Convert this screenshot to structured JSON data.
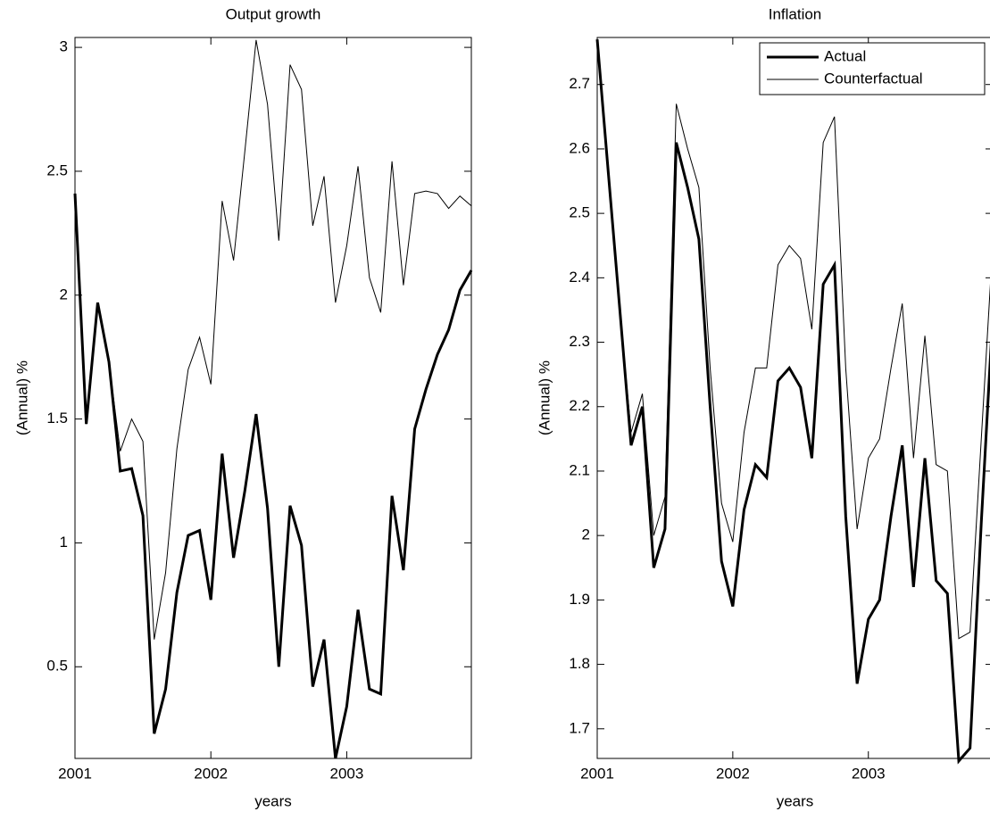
{
  "chart_data": [
    {
      "type": "line",
      "title": "Output growth",
      "xlabel": "years",
      "ylabel": "(Annual) %",
      "x": [
        2001,
        2001.083,
        2001.167,
        2001.25,
        2001.333,
        2001.417,
        2001.5,
        2001.583,
        2001.667,
        2001.75,
        2001.833,
        2001.917,
        2002,
        2002.083,
        2002.167,
        2002.25,
        2002.333,
        2002.417,
        2002.5,
        2002.583,
        2002.667,
        2002.75,
        2002.833,
        2002.917,
        2003,
        2003.083,
        2003.167,
        2003.25,
        2003.333,
        2003.417,
        2003.5,
        2003.583,
        2003.667,
        2003.75,
        2003.833,
        2003.917
      ],
      "series": [
        {
          "name": "Actual",
          "color": "#000000",
          "width": 3,
          "values": [
            2.41,
            1.48,
            1.97,
            1.73,
            1.29,
            1.3,
            1.11,
            0.23,
            0.41,
            0.8,
            1.03,
            1.05,
            0.77,
            1.36,
            0.94,
            1.21,
            1.52,
            1.14,
            0.5,
            1.15,
            0.99,
            0.42,
            0.61,
            0.13,
            0.34,
            0.73,
            0.41,
            0.39,
            1.19,
            0.89,
            1.46,
            1.62,
            1.76,
            1.86,
            2.02,
            2.1
          ]
        },
        {
          "name": "Counterfactual",
          "color": "#000000",
          "width": 1,
          "values": [
            2.41,
            1.48,
            1.97,
            1.73,
            1.37,
            1.5,
            1.41,
            0.61,
            0.88,
            1.38,
            1.7,
            1.83,
            1.64,
            2.38,
            2.14,
            2.58,
            3.03,
            2.77,
            2.22,
            2.93,
            2.83,
            2.28,
            2.48,
            1.97,
            2.2,
            2.52,
            2.07,
            1.93,
            2.54,
            2.04,
            2.41,
            2.42,
            2.41,
            2.35,
            2.4,
            2.36
          ]
        }
      ],
      "xlim": [
        2001,
        2003.917
      ],
      "xticks": [
        2001,
        2002,
        2003
      ],
      "ylim": [
        0.13,
        3.04
      ],
      "yticks": [
        0.5,
        1,
        1.5,
        2,
        2.5,
        3
      ]
    },
    {
      "type": "line",
      "title": "Inflation",
      "xlabel": "years",
      "ylabel": "(Annual) %",
      "legend": "upper right",
      "x": [
        2001,
        2001.083,
        2001.167,
        2001.25,
        2001.333,
        2001.417,
        2001.5,
        2001.583,
        2001.667,
        2001.75,
        2001.833,
        2001.917,
        2002,
        2002.083,
        2002.167,
        2002.25,
        2002.333,
        2002.417,
        2002.5,
        2002.583,
        2002.667,
        2002.75,
        2002.833,
        2002.917,
        2003,
        2003.083,
        2003.167,
        2003.25,
        2003.333,
        2003.417,
        2003.5,
        2003.583,
        2003.667,
        2003.75,
        2003.833,
        2003.917
      ],
      "series": [
        {
          "name": "Actual",
          "color": "#000000",
          "width": 3,
          "values": [
            2.77,
            2.56,
            2.35,
            2.14,
            2.2,
            1.95,
            2.01,
            2.61,
            2.54,
            2.46,
            2.2,
            1.96,
            1.89,
            2.04,
            2.11,
            2.09,
            2.24,
            2.26,
            2.23,
            2.12,
            2.39,
            2.42,
            2.03,
            1.77,
            1.87,
            1.9,
            2.03,
            2.14,
            1.92,
            2.12,
            1.93,
            1.91,
            1.65,
            1.67,
            2.02,
            2.34
          ]
        },
        {
          "name": "Counterfactual",
          "color": "#000000",
          "width": 1,
          "values": [
            2.77,
            2.56,
            2.35,
            2.16,
            2.22,
            2.0,
            2.06,
            2.67,
            2.6,
            2.54,
            2.26,
            2.05,
            1.99,
            2.16,
            2.26,
            2.26,
            2.42,
            2.45,
            2.43,
            2.32,
            2.61,
            2.65,
            2.26,
            2.01,
            2.12,
            2.15,
            2.26,
            2.36,
            2.12,
            2.31,
            2.11,
            2.1,
            1.84,
            1.85,
            2.15,
            2.45
          ]
        }
      ],
      "xlim": [
        2001,
        2003.917
      ],
      "xticks": [
        2001,
        2002,
        2003
      ],
      "ylim": [
        1.654,
        2.773
      ],
      "yticks": [
        1.7,
        1.8,
        1.9,
        2,
        2.1,
        2.2,
        2.3,
        2.4,
        2.5,
        2.6,
        2.7
      ]
    }
  ]
}
